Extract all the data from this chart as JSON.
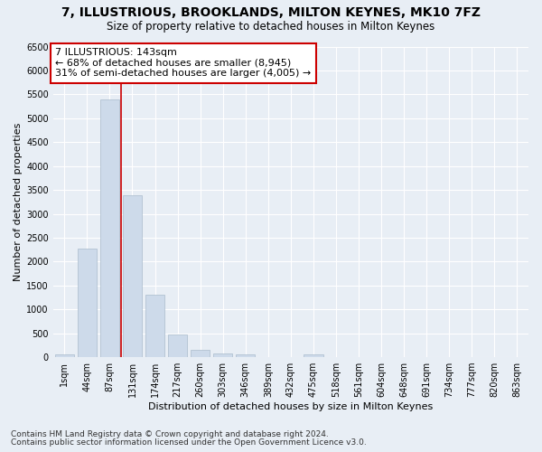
{
  "title": "7, ILLUSTRIOUS, BROOKLANDS, MILTON KEYNES, MK10 7FZ",
  "subtitle": "Size of property relative to detached houses in Milton Keynes",
  "xlabel": "Distribution of detached houses by size in Milton Keynes",
  "ylabel": "Number of detached properties",
  "footer_line1": "Contains HM Land Registry data © Crown copyright and database right 2024.",
  "footer_line2": "Contains public sector information licensed under the Open Government Licence v3.0.",
  "bar_labels": [
    "1sqm",
    "44sqm",
    "87sqm",
    "131sqm",
    "174sqm",
    "217sqm",
    "260sqm",
    "303sqm",
    "346sqm",
    "389sqm",
    "432sqm",
    "475sqm",
    "518sqm",
    "561sqm",
    "604sqm",
    "648sqm",
    "691sqm",
    "734sqm",
    "777sqm",
    "820sqm",
    "863sqm"
  ],
  "bar_values": [
    60,
    2280,
    5400,
    3380,
    1300,
    480,
    160,
    80,
    60,
    0,
    0,
    60,
    0,
    0,
    0,
    0,
    0,
    0,
    0,
    0,
    0
  ],
  "bar_color": "#cddaea",
  "bar_edge_color": "#aabccc",
  "vline_position": 2.5,
  "vline_color": "#cc0000",
  "annotation_text": "7 ILLUSTRIOUS: 143sqm\n← 68% of detached houses are smaller (8,945)\n31% of semi-detached houses are larger (4,005) →",
  "annotation_box_facecolor": "white",
  "annotation_box_edgecolor": "#cc0000",
  "ylim_max": 6500,
  "yticks": [
    0,
    500,
    1000,
    1500,
    2000,
    2500,
    3000,
    3500,
    4000,
    4500,
    5000,
    5500,
    6000,
    6500
  ],
  "bg_color": "#e8eef5",
  "grid_color": "white",
  "title_fontsize": 10,
  "subtitle_fontsize": 8.5,
  "axis_label_fontsize": 8,
  "tick_fontsize": 7,
  "footer_fontsize": 6.5,
  "annotation_fontsize": 8
}
